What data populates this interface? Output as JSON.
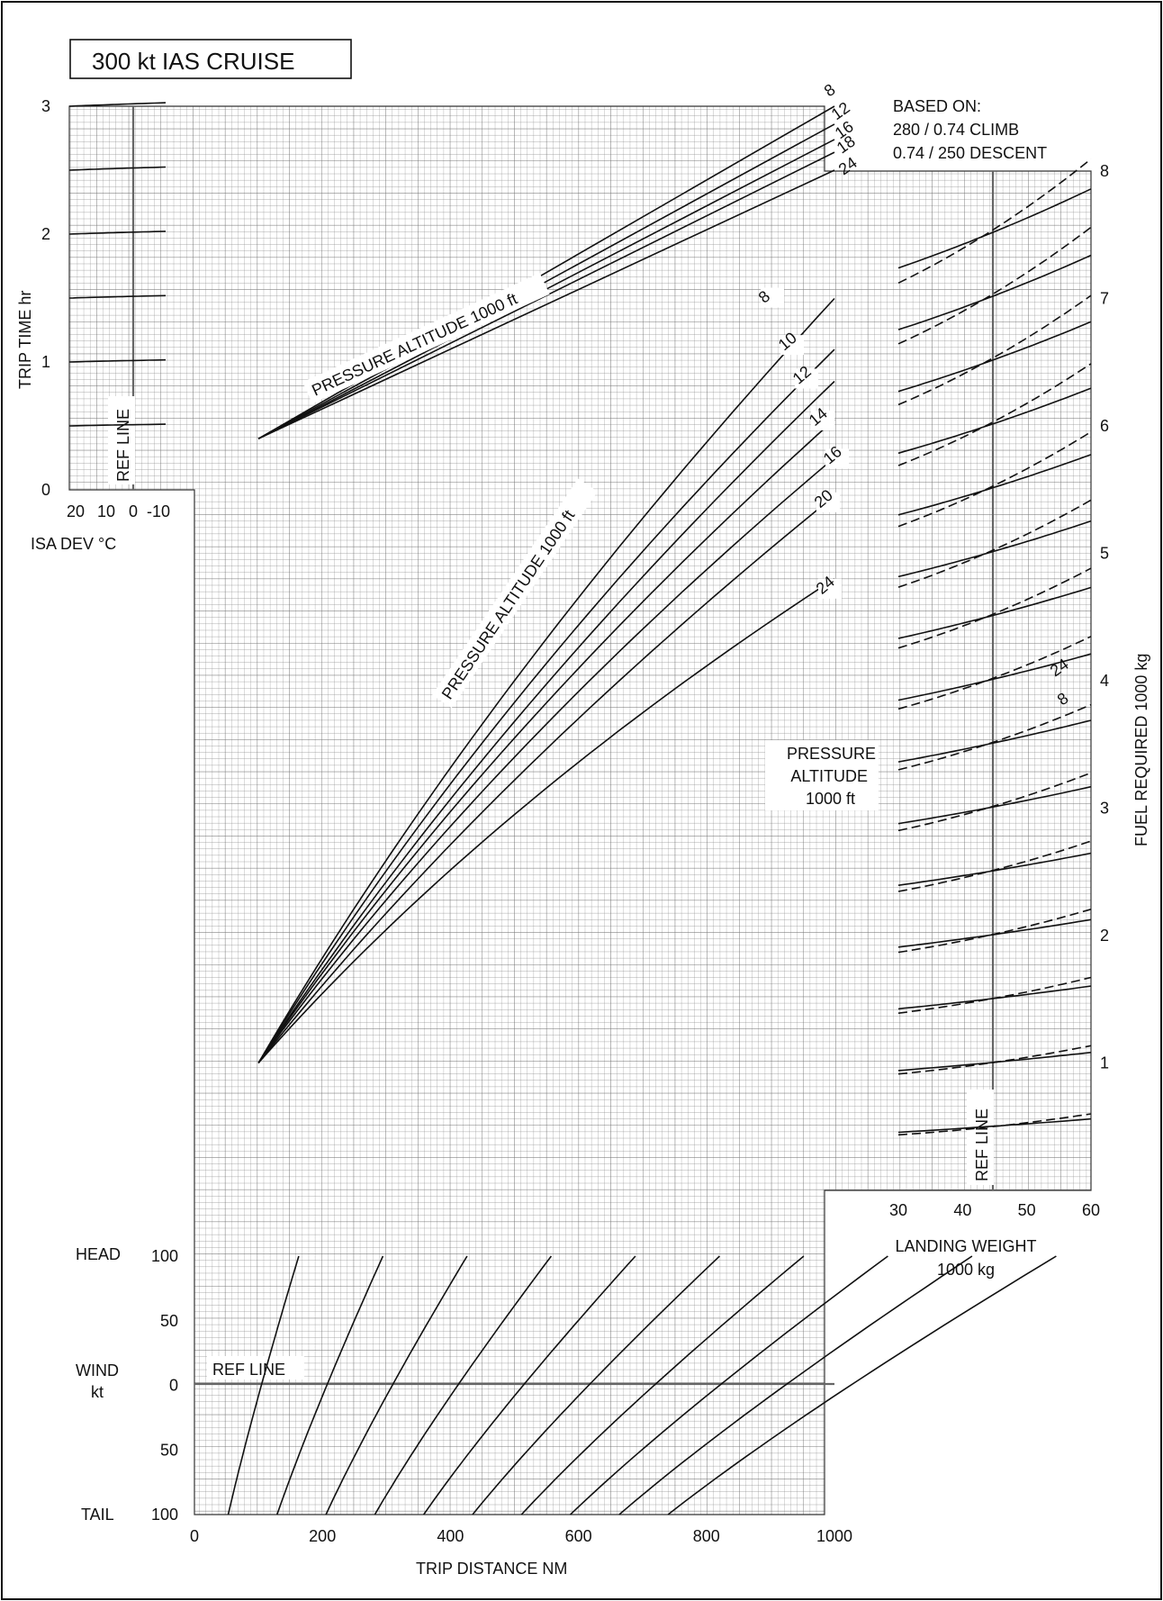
{
  "chart_data": {
    "type": "line",
    "title": "300 kt IAS CRUISE",
    "based_on": [
      "BASED ON:",
      "280 / 0.74 CLIMB",
      "0.74 / 250 DESCENT"
    ],
    "x_axis": {
      "label": "TRIP DISTANCE  NM",
      "range": [
        0,
        1000
      ],
      "ticks": [
        "0",
        "200",
        "400",
        "600",
        "800",
        "1000"
      ]
    },
    "trip_time": {
      "axis_label": "TRIP TIME  hr",
      "range": [
        0,
        3
      ],
      "ticks": [
        "0",
        "1",
        "2",
        "3"
      ],
      "isa_dev": {
        "label": "ISA DEV °C",
        "ticks": [
          "20",
          "10",
          "0",
          "-10"
        ],
        "ref_line_label": "REF LINE",
        "guide_start_values": [
          0.5,
          1.0,
          1.5,
          2.0,
          2.5,
          3.0
        ]
      },
      "altitude_label": "PRESSURE ALTITUDE  1000 ft",
      "series": [
        {
          "name": "8",
          "values": [
            [
              100,
              0.4
            ],
            [
              1000,
              3.0
            ]
          ]
        },
        {
          "name": "12",
          "values": [
            [
              100,
              0.4
            ],
            [
              1000,
              2.86
            ]
          ]
        },
        {
          "name": "16",
          "values": [
            [
              100,
              0.4
            ],
            [
              1000,
              2.74
            ]
          ]
        },
        {
          "name": "18",
          "values": [
            [
              100,
              0.4
            ],
            [
              1000,
              2.64
            ]
          ]
        },
        {
          "name": "24",
          "values": [
            [
              100,
              0.4
            ],
            [
              1000,
              2.5
            ]
          ]
        }
      ]
    },
    "fuel_required": {
      "axis_label": "FUEL REQUIRED  1000 kg",
      "range": [
        0,
        8
      ],
      "ticks": [
        "1",
        "2",
        "3",
        "4",
        "5",
        "6",
        "7",
        "8"
      ],
      "altitude_label": "PRESSURE ALTITUDE  1000 ft",
      "series": [
        {
          "name": "8",
          "values": [
            [
              100,
              1.0
            ],
            [
              500,
              4.0
            ],
            [
              1000,
              7.0
            ]
          ]
        },
        {
          "name": "10",
          "values": [
            [
              100,
              1.0
            ],
            [
              500,
              3.83
            ],
            [
              1000,
              6.6
            ]
          ]
        },
        {
          "name": "12",
          "values": [
            [
              100,
              1.0
            ],
            [
              500,
              3.68
            ],
            [
              1000,
              6.35
            ]
          ]
        },
        {
          "name": "14",
          "values": [
            [
              100,
              1.0
            ],
            [
              500,
              3.55
            ],
            [
              1000,
              6.05
            ]
          ]
        },
        {
          "name": "16",
          "values": [
            [
              100,
              1.0
            ],
            [
              500,
              3.4
            ],
            [
              1000,
              5.75
            ]
          ]
        },
        {
          "name": "20",
          "values": [
            [
              100,
              1.0
            ],
            [
              500,
              3.22
            ],
            [
              1000,
              5.45
            ]
          ]
        },
        {
          "name": "24",
          "values": [
            [
              100,
              1.0
            ],
            [
              500,
              2.95
            ],
            [
              1000,
              4.8
            ]
          ]
        }
      ]
    },
    "landing_weight": {
      "label_line1": "LANDING WEIGHT",
      "label_line2": "1000 kg",
      "ticks": [
        "30",
        "40",
        "50",
        "60"
      ],
      "ref_line_label": "REF LINE",
      "ref_value": 45,
      "legend_solid": "24",
      "legend_dashed": "8",
      "pressure_altitude_label": [
        "PRESSURE",
        "ALTITUDE",
        "1000 ft"
      ],
      "guide_values_at_ref": [
        0.5,
        1.0,
        1.5,
        2.0,
        2.5,
        3.0,
        3.5,
        4.0,
        4.5,
        5.0,
        5.5,
        6.0,
        6.5,
        7.0,
        7.5
      ]
    },
    "wind": {
      "label_line1": "WIND",
      "label_line2": "kt",
      "head_label": "HEAD",
      "tail_label": "TAIL",
      "ticks": [
        "100",
        "50",
        "0",
        "50",
        "100"
      ],
      "ref_line_label": "REF LINE",
      "guide_start_distances": [
        100,
        200,
        300,
        400,
        500,
        600,
        700,
        800,
        900,
        1000
      ]
    },
    "grid": true
  }
}
